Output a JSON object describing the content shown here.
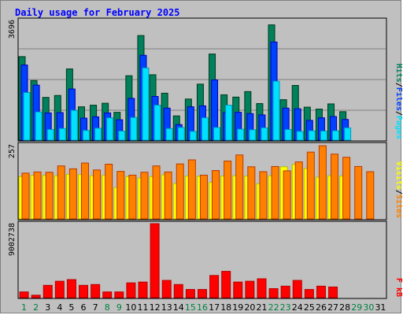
{
  "title": "Daily usage for February 2025",
  "colors": {
    "background": "#c0c0c0",
    "title": "#0000ff",
    "hits": "#00805c",
    "files": "#0040ff",
    "pages": "#00e0ff",
    "visits": "#ffff00",
    "sites": "#ff8000",
    "kbytes": "#ff0000",
    "weekday_label": "#000000",
    "weekend_label": "#008040"
  },
  "chart_data": [
    {
      "type": "bar",
      "name": "hits-files-pages",
      "categories": [
        "1",
        "2",
        "3",
        "4",
        "5",
        "6",
        "7",
        "8",
        "9",
        "10",
        "11",
        "12",
        "13",
        "14",
        "15",
        "16",
        "17",
        "18",
        "19",
        "20",
        "21",
        "22",
        "23",
        "24",
        "25",
        "26",
        "27",
        "28",
        "29",
        "30",
        "31"
      ],
      "ymax_label": "3696",
      "ylim": [
        0,
        3696
      ],
      "legend": [
        "Pages",
        "/",
        "Files",
        "/",
        "Hits"
      ],
      "series": [
        {
          "name": "Hits",
          "values": [
            2580,
            1840,
            1320,
            1380,
            2200,
            1030,
            1080,
            1140,
            860,
            1990,
            3230,
            2020,
            1450,
            750,
            1270,
            1730,
            2660,
            1400,
            1330,
            1500,
            1130,
            3560,
            1250,
            1690,
            1020,
            960,
            1120,
            880,
            0,
            0,
            0
          ]
        },
        {
          "name": "Files",
          "values": [
            2320,
            1700,
            840,
            850,
            1580,
            680,
            720,
            840,
            630,
            1290,
            2620,
            1350,
            990,
            480,
            1030,
            1060,
            1860,
            850,
            860,
            820,
            780,
            3030,
            990,
            970,
            610,
            690,
            730,
            640,
            0,
            0,
            0
          ]
        },
        {
          "name": "Pages",
          "values": [
            1470,
            870,
            330,
            360,
            920,
            300,
            370,
            690,
            280,
            700,
            2230,
            1080,
            360,
            390,
            270,
            690,
            390,
            1080,
            340,
            320,
            380,
            1820,
            330,
            270,
            290,
            280,
            290,
            380,
            0,
            0,
            0
          ]
        }
      ]
    },
    {
      "type": "bar",
      "name": "visits-sites",
      "categories": [
        "1",
        "2",
        "3",
        "4",
        "5",
        "6",
        "7",
        "8",
        "9",
        "10",
        "11",
        "12",
        "13",
        "14",
        "15",
        "16",
        "17",
        "18",
        "19",
        "20",
        "21",
        "22",
        "23",
        "24",
        "25",
        "26",
        "27",
        "28",
        "29",
        "30",
        "31"
      ],
      "ymax_label": "257",
      "ylim": [
        0,
        257
      ],
      "legend": [
        "Sites",
        "/",
        "Visits"
      ],
      "series": [
        {
          "name": "Visits",
          "values": [
            147,
            151,
            151,
            150,
            155,
            154,
            150,
            151,
            109,
            147,
            142,
            147,
            153,
            123,
            149,
            148,
            127,
            149,
            150,
            149,
            122,
            150,
            181,
            189,
            175,
            145,
            150,
            149,
            0,
            0,
            0
          ]
        },
        {
          "name": "Sites",
          "values": [
            159,
            163,
            162,
            184,
            174,
            194,
            170,
            190,
            165,
            152,
            162,
            184,
            163,
            191,
            205,
            152,
            168,
            201,
            222,
            181,
            164,
            182,
            167,
            198,
            232,
            254,
            225,
            214,
            182,
            164,
            0
          ]
        }
      ]
    },
    {
      "type": "bar",
      "name": "kbytes",
      "categories": [
        "1",
        "2",
        "3",
        "4",
        "5",
        "6",
        "7",
        "8",
        "9",
        "10",
        "11",
        "12",
        "13",
        "14",
        "15",
        "16",
        "17",
        "18",
        "19",
        "20",
        "21",
        "22",
        "23",
        "24",
        "25",
        "26",
        "27",
        "28",
        "29",
        "30",
        "31"
      ],
      "ymax_label": "9002738",
      "ylim": [
        0,
        9002738
      ],
      "legend": [
        "kB",
        "F"
      ],
      "series": [
        {
          "name": "kB F",
          "values": [
            700000,
            300000,
            1500000,
            2000000,
            2200000,
            1500000,
            1600000,
            700000,
            700000,
            1800000,
            1900000,
            9000000,
            2100000,
            1600000,
            1000000,
            1000000,
            2700000,
            3200000,
            1900000,
            2000000,
            2300000,
            1100000,
            1400000,
            2100000,
            1000000,
            1400000,
            1300000,
            0,
            0,
            0,
            0
          ]
        }
      ]
    }
  ],
  "x_labels": {
    "weekend_days": [
      "1",
      "2",
      "8",
      "9",
      "15",
      "16",
      "22",
      "23",
      "29",
      "30"
    ]
  }
}
